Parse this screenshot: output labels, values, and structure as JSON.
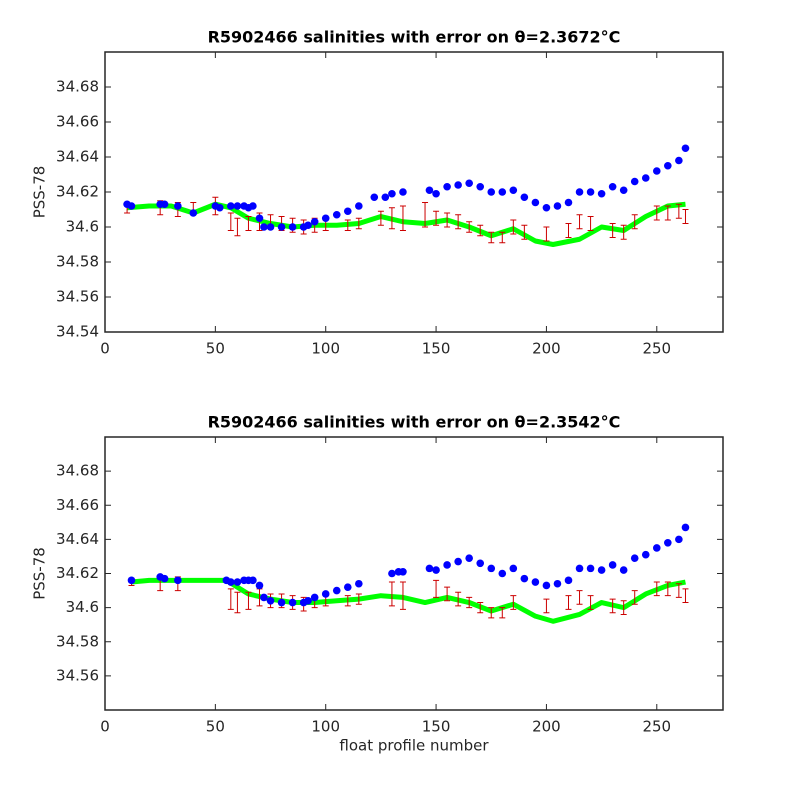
{
  "chart_data": [
    {
      "type": "line",
      "title": "R5902466 salinities with error on θ=2.3672°C",
      "ylabel": "PSS-78",
      "xlim": [
        0,
        280
      ],
      "ylim": [
        34.54,
        34.7
      ],
      "xticks": [
        0,
        50,
        100,
        150,
        200,
        250
      ],
      "yticks": [
        34.54,
        34.56,
        34.58,
        34.6,
        34.62,
        34.64,
        34.66,
        34.68
      ],
      "series": [
        {
          "type": "line",
          "color": "#00ff00",
          "x": [
            10,
            20,
            30,
            40,
            50,
            57,
            65,
            75,
            85,
            95,
            105,
            115,
            125,
            135,
            145,
            155,
            165,
            175,
            185,
            195,
            203,
            215,
            225,
            235,
            245,
            255,
            263
          ],
          "values": [
            34.611,
            34.612,
            34.612,
            34.608,
            34.613,
            34.611,
            34.605,
            34.602,
            34.6,
            34.601,
            34.601,
            34.602,
            34.606,
            34.603,
            34.602,
            34.604,
            34.6,
            34.595,
            34.599,
            34.592,
            34.59,
            34.593,
            34.6,
            34.598,
            34.606,
            34.612,
            34.613
          ]
        },
        {
          "type": "errorbar",
          "color": "#cc0000",
          "x": [
            10,
            25,
            33,
            40,
            50,
            57,
            60,
            65,
            70,
            75,
            80,
            85,
            90,
            95,
            100,
            110,
            115,
            125,
            130,
            135,
            145,
            150,
            155,
            160,
            165,
            170,
            175,
            180,
            185,
            190,
            200,
            210,
            215,
            220,
            230,
            235,
            240,
            250,
            255,
            260,
            263
          ],
          "values": [
            34.611,
            34.611,
            34.61,
            34.611,
            34.612,
            34.603,
            34.6,
            34.602,
            34.603,
            34.603,
            34.602,
            34.601,
            34.6,
            34.601,
            34.601,
            34.601,
            34.602,
            34.605,
            34.605,
            34.605,
            34.607,
            34.605,
            34.604,
            34.603,
            34.6,
            34.598,
            34.594,
            34.594,
            34.6,
            34.597,
            34.596,
            34.598,
            34.603,
            34.602,
            34.598,
            34.597,
            34.603,
            34.608,
            34.608,
            34.609,
            34.606
          ],
          "errors": [
            0.003,
            0.004,
            0.004,
            0.003,
            0.005,
            0.005,
            0.005,
            0.004,
            0.005,
            0.004,
            0.004,
            0.004,
            0.004,
            0.004,
            0.003,
            0.003,
            0.003,
            0.004,
            0.006,
            0.007,
            0.007,
            0.004,
            0.004,
            0.004,
            0.003,
            0.003,
            0.003,
            0.003,
            0.004,
            0.004,
            0.004,
            0.004,
            0.004,
            0.004,
            0.004,
            0.004,
            0.004,
            0.004,
            0.004,
            0.004,
            0.004
          ]
        },
        {
          "type": "scatter",
          "color": "#0000ff",
          "x": [
            10,
            12,
            25,
            27,
            33,
            40,
            50,
            52,
            57,
            60,
            63,
            65,
            67,
            70,
            72,
            75,
            80,
            85,
            90,
            92,
            95,
            100,
            105,
            110,
            115,
            122,
            127,
            130,
            135,
            147,
            150,
            155,
            160,
            165,
            170,
            175,
            180,
            185,
            190,
            195,
            200,
            205,
            210,
            215,
            220,
            225,
            230,
            235,
            240,
            245,
            250,
            255,
            260,
            263
          ],
          "values": [
            34.613,
            34.612,
            34.613,
            34.613,
            34.612,
            34.608,
            34.612,
            34.611,
            34.612,
            34.612,
            34.612,
            34.611,
            34.612,
            34.605,
            34.6,
            34.6,
            34.6,
            34.6,
            34.6,
            34.601,
            34.603,
            34.605,
            34.607,
            34.609,
            34.612,
            34.617,
            34.617,
            34.619,
            34.62,
            34.621,
            34.619,
            34.623,
            34.624,
            34.625,
            34.623,
            34.62,
            34.62,
            34.621,
            34.617,
            34.614,
            34.611,
            34.612,
            34.614,
            34.62,
            34.62,
            34.619,
            34.623,
            34.621,
            34.626,
            34.628,
            34.632,
            34.635,
            34.638,
            34.645
          ]
        }
      ]
    },
    {
      "type": "line",
      "title": "R5902466 salinities with error on θ=2.3542°C",
      "ylabel": "PSS-78",
      "xlabel": "float profile number",
      "xlim": [
        0,
        280
      ],
      "ylim": [
        34.54,
        34.7
      ],
      "xticks": [
        0,
        50,
        100,
        150,
        200,
        250
      ],
      "yticks": [
        34.56,
        34.58,
        34.6,
        34.62,
        34.64,
        34.66,
        34.68
      ],
      "series": [
        {
          "type": "line",
          "color": "#00ff00",
          "x": [
            12,
            20,
            30,
            55,
            65,
            75,
            85,
            95,
            105,
            115,
            125,
            135,
            145,
            155,
            165,
            175,
            185,
            195,
            203,
            215,
            225,
            235,
            245,
            255,
            263
          ],
          "values": [
            34.615,
            34.616,
            34.616,
            34.616,
            34.608,
            34.605,
            34.603,
            34.603,
            34.604,
            34.605,
            34.607,
            34.606,
            34.603,
            34.606,
            34.603,
            34.598,
            34.602,
            34.595,
            34.592,
            34.596,
            34.603,
            34.6,
            34.608,
            34.613,
            34.615
          ]
        },
        {
          "type": "errorbar",
          "color": "#cc0000",
          "x": [
            12,
            25,
            33,
            57,
            60,
            65,
            70,
            75,
            80,
            85,
            90,
            95,
            100,
            110,
            115,
            130,
            135,
            150,
            155,
            160,
            165,
            170,
            175,
            180,
            185,
            200,
            210,
            215,
            220,
            230,
            235,
            240,
            250,
            255,
            260,
            263
          ],
          "values": [
            34.615,
            34.614,
            34.614,
            34.605,
            34.603,
            34.604,
            34.606,
            34.604,
            34.604,
            34.603,
            34.602,
            34.603,
            34.604,
            34.604,
            34.605,
            34.608,
            34.607,
            34.611,
            34.608,
            34.605,
            34.603,
            34.6,
            34.597,
            34.597,
            34.603,
            34.601,
            34.603,
            34.606,
            34.603,
            34.601,
            34.6,
            34.606,
            34.611,
            34.611,
            34.61,
            34.607
          ],
          "errors": [
            0.002,
            0.004,
            0.004,
            0.006,
            0.006,
            0.005,
            0.005,
            0.004,
            0.004,
            0.004,
            0.004,
            0.003,
            0.003,
            0.003,
            0.003,
            0.007,
            0.008,
            0.005,
            0.004,
            0.004,
            0.003,
            0.003,
            0.003,
            0.003,
            0.004,
            0.004,
            0.004,
            0.004,
            0.004,
            0.004,
            0.004,
            0.004,
            0.004,
            0.004,
            0.004,
            0.004
          ]
        },
        {
          "type": "scatter",
          "color": "#0000ff",
          "x": [
            12,
            25,
            27,
            33,
            55,
            57,
            60,
            63,
            65,
            67,
            70,
            72,
            75,
            80,
            85,
            90,
            92,
            95,
            100,
            105,
            110,
            115,
            130,
            133,
            135,
            147,
            150,
            155,
            160,
            165,
            170,
            175,
            180,
            185,
            190,
            195,
            200,
            205,
            210,
            215,
            220,
            225,
            230,
            235,
            240,
            245,
            250,
            255,
            260,
            263
          ],
          "values": [
            34.616,
            34.618,
            34.617,
            34.616,
            34.616,
            34.615,
            34.615,
            34.616,
            34.616,
            34.616,
            34.613,
            34.606,
            34.604,
            34.603,
            34.603,
            34.603,
            34.604,
            34.606,
            34.608,
            34.61,
            34.612,
            34.614,
            34.62,
            34.621,
            34.621,
            34.623,
            34.622,
            34.625,
            34.627,
            34.629,
            34.626,
            34.623,
            34.62,
            34.623,
            34.617,
            34.615,
            34.613,
            34.614,
            34.616,
            34.623,
            34.623,
            34.622,
            34.625,
            34.622,
            34.629,
            34.631,
            34.635,
            34.638,
            34.64,
            34.647
          ]
        }
      ]
    }
  ]
}
